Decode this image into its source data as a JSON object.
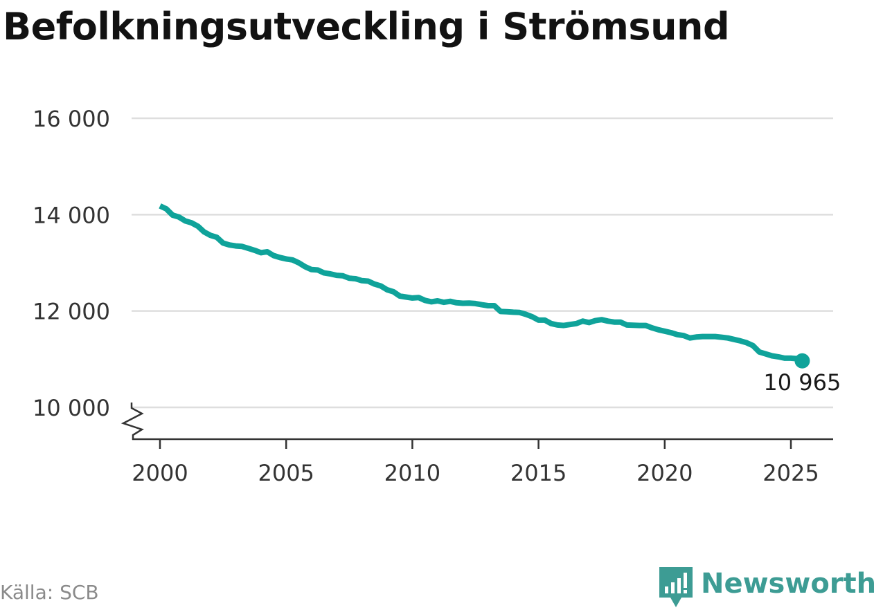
{
  "chart_data": {
    "type": "line",
    "title": "Befolkningsutveckling i Strömsund",
    "xlabel": "",
    "ylabel": "",
    "xlim": [
      1999.5,
      2026.5
    ],
    "ylim": [
      9400,
      16500
    ],
    "y_break": true,
    "x_ticks": [
      2000,
      2005,
      2010,
      2015,
      2020,
      2025
    ],
    "x_tick_labels": [
      "2000",
      "2005",
      "2010",
      "2015",
      "2020",
      "2025"
    ],
    "y_ticks": [
      10000,
      12000,
      14000,
      16000
    ],
    "y_tick_labels": [
      "10 000",
      "12 000",
      "14 000",
      "16 000"
    ],
    "grid": true,
    "line_color": "#0fa39a",
    "grid_color": "#dedede",
    "axis_color": "#333333",
    "series": [
      {
        "x": [
          2000.0,
          2000.25,
          2000.5,
          2000.75,
          2001.0,
          2001.25,
          2001.5,
          2001.75,
          2002.0,
          2002.25,
          2002.5,
          2002.75,
          2003.0,
          2003.25,
          2003.5,
          2003.75,
          2004.0,
          2004.25,
          2004.5,
          2004.75,
          2005.0,
          2005.25,
          2005.5,
          2005.75,
          2006.0,
          2006.25,
          2006.5,
          2006.75,
          2007.0,
          2007.25,
          2007.5,
          2007.75,
          2008.0,
          2008.25,
          2008.5,
          2008.75,
          2009.0,
          2009.25,
          2009.5,
          2009.75,
          2010.0,
          2010.25,
          2010.5,
          2010.75,
          2011.0,
          2011.25,
          2011.5,
          2011.75,
          2012.0,
          2012.25,
          2012.5,
          2012.75,
          2013.0,
          2013.25,
          2013.5,
          2013.75,
          2014.0,
          2014.25,
          2014.5,
          2014.75,
          2015.0,
          2015.25,
          2015.5,
          2015.75,
          2016.0,
          2016.25,
          2016.5,
          2016.75,
          2017.0,
          2017.25,
          2017.5,
          2017.75,
          2018.0,
          2018.25,
          2018.5,
          2018.75,
          2019.0,
          2019.25,
          2019.5,
          2019.75,
          2020.0,
          2020.25,
          2020.5,
          2020.75,
          2021.0,
          2021.25,
          2021.5,
          2021.75,
          2022.0,
          2022.25,
          2022.5,
          2022.75,
          2023.0,
          2023.25,
          2023.5,
          2023.75,
          2024.0,
          2024.25,
          2024.5,
          2024.75,
          2025.0,
          2025.25,
          2025.45
        ],
        "values": [
          14180,
          14120,
          13990,
          13950,
          13870,
          13830,
          13760,
          13640,
          13570,
          13530,
          13410,
          13370,
          13350,
          13340,
          13300,
          13260,
          13210,
          13230,
          13150,
          13110,
          13080,
          13060,
          13000,
          12920,
          12860,
          12850,
          12790,
          12770,
          12740,
          12730,
          12680,
          12670,
          12630,
          12620,
          12560,
          12520,
          12440,
          12400,
          12310,
          12290,
          12270,
          12280,
          12220,
          12190,
          12210,
          12180,
          12200,
          12170,
          12160,
          12165,
          12155,
          12130,
          12110,
          12110,
          11990,
          11985,
          11975,
          11970,
          11930,
          11880,
          11810,
          11810,
          11740,
          11710,
          11700,
          11720,
          11740,
          11790,
          11760,
          11800,
          11820,
          11790,
          11770,
          11770,
          11710,
          11705,
          11700,
          11700,
          11650,
          11610,
          11580,
          11550,
          11510,
          11490,
          11440,
          11460,
          11470,
          11470,
          11470,
          11455,
          11440,
          11410,
          11380,
          11340,
          11280,
          11150,
          11110,
          11070,
          11050,
          11020,
          11020,
          11010,
          10965
        ]
      }
    ],
    "end_label": "10 965"
  },
  "source": "Källa: SCB",
  "brand": {
    "name": "Newsworthy",
    "color": "#3d9c94",
    "icon": "newsworthy-logo-icon"
  }
}
